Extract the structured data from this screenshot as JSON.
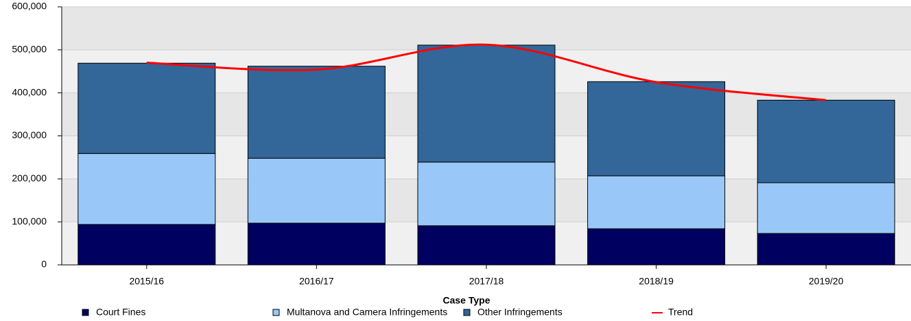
{
  "chart_data": {
    "type": "stacked_bar",
    "categories": [
      "2015/16",
      "2016/17",
      "2017/18",
      "2018/19",
      "2019/20"
    ],
    "series": [
      {
        "name": "Court Fines",
        "color": "#000060",
        "values": [
          94000,
          97000,
          91000,
          84000,
          73000
        ]
      },
      {
        "name": "Multanova and Camera Infringements",
        "color": "#99c8f8",
        "values": [
          165000,
          151000,
          148000,
          123000,
          118000
        ]
      },
      {
        "name": "Other Infringements",
        "color": "#336699",
        "values": [
          210000,
          214000,
          272000,
          219000,
          192000
        ]
      }
    ],
    "trend": {
      "name": "Trend",
      "color": "#ff0000",
      "values": [
        470000,
        454000,
        512000,
        425000,
        383000
      ]
    },
    "ylim": [
      0,
      600000
    ],
    "yticks": [
      0,
      {
        "value": 100000,
        "label": "100,000"
      },
      {
        "value": 200000,
        "label": "200,000"
      },
      {
        "value": 300000,
        "label": "300,000"
      },
      {
        "value": 400000,
        "label": "400,000"
      },
      {
        "value": 500000,
        "label": "500,000"
      },
      {
        "value": 600000,
        "label": "600,000"
      }
    ],
    "legend_title": "Case Type",
    "legend": "bottom",
    "grid": true
  }
}
